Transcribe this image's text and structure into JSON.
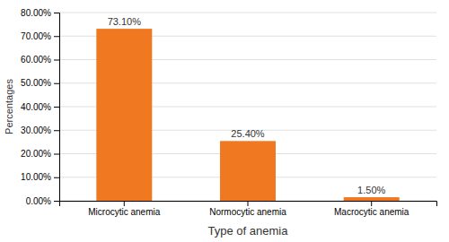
{
  "chart_data": {
    "type": "bar",
    "categories": [
      "Microcytic anemia",
      "Normocytic anemia",
      "Macrocytic anemia"
    ],
    "values": [
      73.1,
      25.4,
      1.5
    ],
    "value_labels": [
      "73.10%",
      "25.40%",
      "1.50%"
    ],
    "data_labels": true,
    "color": "#F07820",
    "xlabel": "Type of anemia",
    "ylabel": "Percentages",
    "ylim": [
      0,
      80
    ],
    "yticks": [
      {
        "value": 0,
        "label": "0.00%"
      },
      {
        "value": 10,
        "label": "10.00%"
      },
      {
        "value": 20,
        "label": "20.00%"
      },
      {
        "value": 30,
        "label": "30.00%"
      },
      {
        "value": 40,
        "label": "40.00%"
      },
      {
        "value": 50,
        "label": "50.00%"
      },
      {
        "value": 60,
        "label": "60.00%"
      },
      {
        "value": 70,
        "label": "70.00%"
      },
      {
        "value": 80,
        "label": "80.00%"
      }
    ],
    "grid": true
  }
}
